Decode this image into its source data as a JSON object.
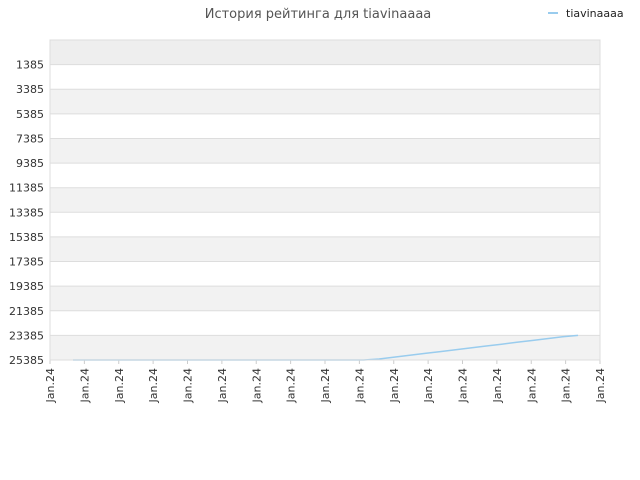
{
  "chart_data": {
    "type": "line",
    "title": "История рейтинга для tiavinaaaa",
    "xlabel": "",
    "ylabel": "",
    "y_reversed": true,
    "ylim": [
      -615,
      25385
    ],
    "yticks": [
      1385,
      3385,
      5385,
      7385,
      9385,
      11385,
      13385,
      15385,
      17385,
      19385,
      21385,
      23385,
      25385
    ],
    "x_tick_labels": [
      "Jan.24",
      "Jan.24",
      "Jan.24",
      "Jan.24",
      "Jan.24",
      "Jan.24",
      "Jan.24",
      "Jan.24",
      "Jan.24",
      "Jan.24",
      "Jan.24",
      "Jan.24",
      "Jan.24",
      "Jan.24",
      "Jan.24",
      "Jan.24",
      "Jan.24"
    ],
    "legend_position": "top-right",
    "grid": true,
    "series": [
      {
        "name": "tiavinaaaa",
        "color": "#99ccee",
        "values": [
          25385,
          25385,
          25385,
          25385,
          25385,
          25385,
          25385,
          25385,
          25385,
          25385,
          25385,
          25385,
          25385,
          25385,
          25385,
          25385,
          25385,
          25385,
          25385,
          25385,
          25300,
          25150,
          25000,
          24850,
          24700,
          24550,
          24400,
          24250,
          24100,
          23950,
          23800,
          23650,
          23500,
          23385
        ]
      }
    ]
  }
}
